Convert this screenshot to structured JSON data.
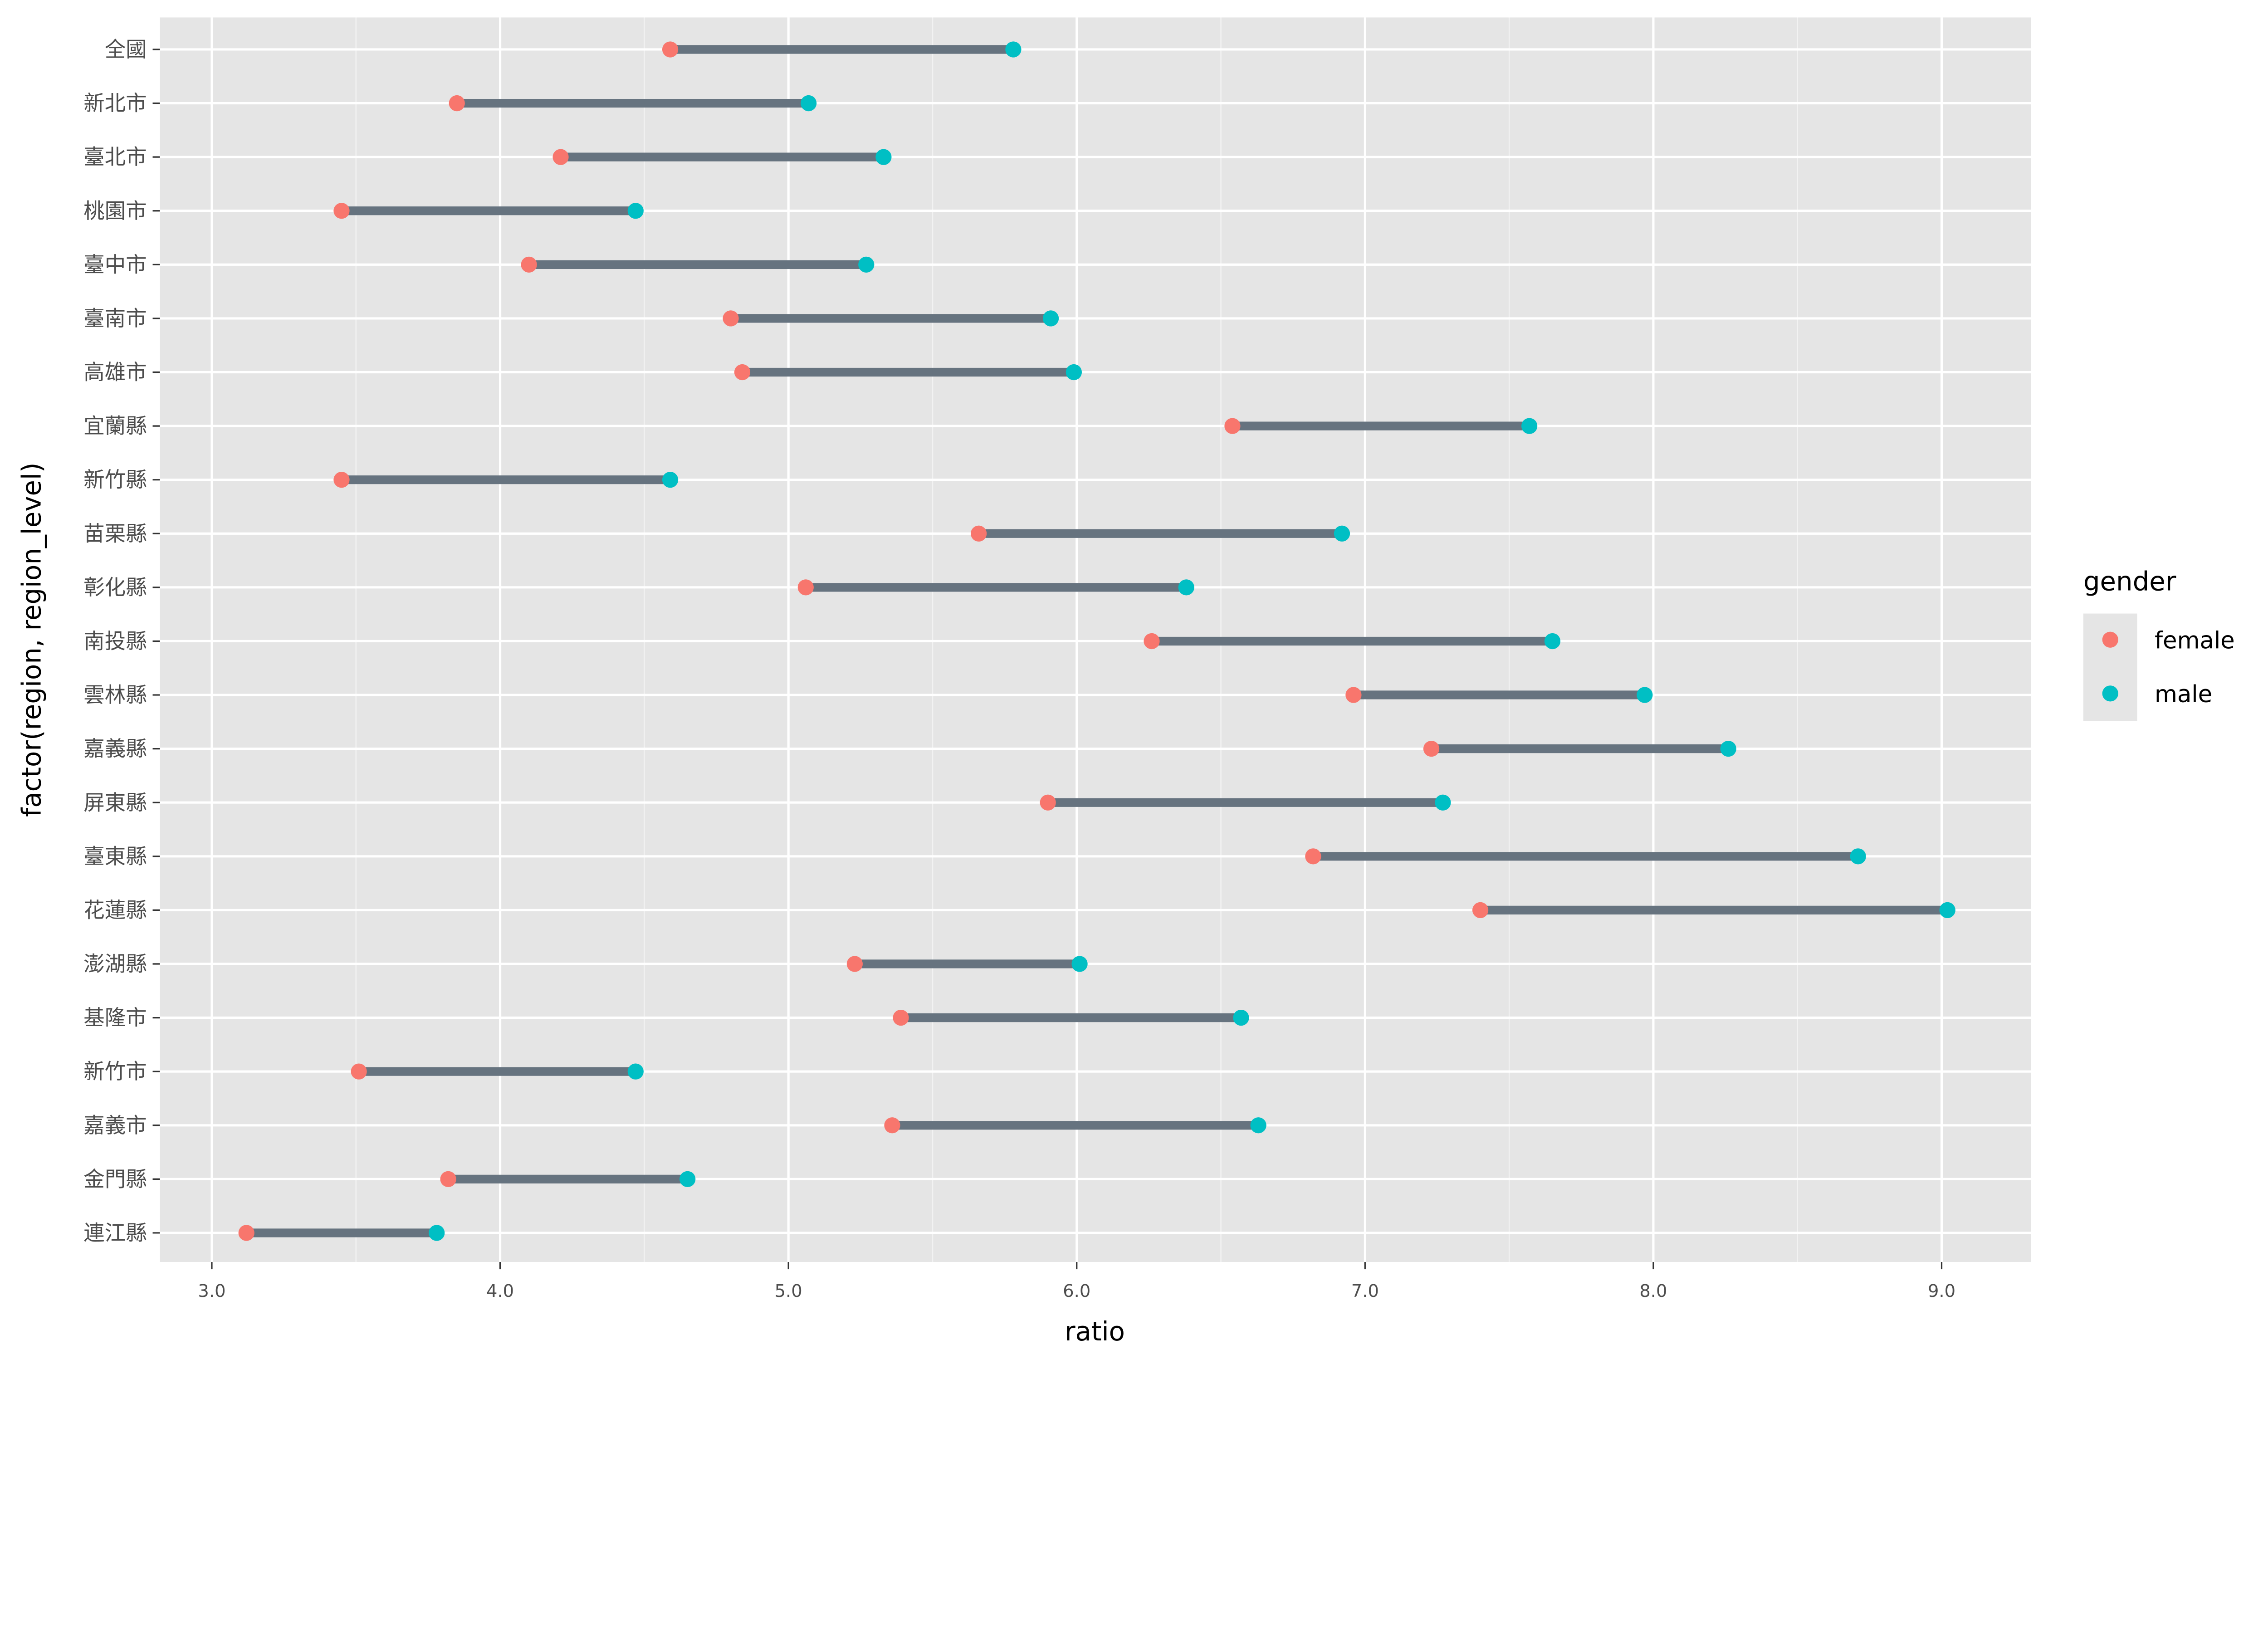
{
  "chart_data": {
    "type": "dumbbell",
    "xlabel": "ratio",
    "ylabel": "factor(region, region_level)",
    "xlim": [
      2.82,
      9.31
    ],
    "xticks": [
      3,
      4,
      5,
      6,
      7,
      8,
      9
    ],
    "xtick_labels": [
      "3.0",
      "4.0",
      "5.0",
      "6.0",
      "7.0",
      "8.0",
      "9.0"
    ],
    "grid": true,
    "legend": {
      "title": "gender",
      "position": "right",
      "entries": [
        "female",
        "male"
      ]
    },
    "colors": {
      "female": "#F8766D",
      "male": "#00BFC4",
      "segment": "#66737F",
      "panel": "#E5E5E5",
      "grid": "#FFFFFF"
    },
    "categories": [
      "全國",
      "新北市",
      "臺北市",
      "桃園市",
      "臺中市",
      "臺南市",
      "高雄市",
      "宜蘭縣",
      "新竹縣",
      "苗栗縣",
      "彰化縣",
      "南投縣",
      "雲林縣",
      "嘉義縣",
      "屏東縣",
      "臺東縣",
      "花蓮縣",
      "澎湖縣",
      "基隆市",
      "新竹市",
      "嘉義市",
      "金門縣",
      "連江縣"
    ],
    "series": [
      {
        "name": "female",
        "values": [
          4.59,
          3.85,
          4.21,
          3.45,
          4.1,
          4.8,
          4.84,
          6.54,
          3.45,
          5.66,
          5.06,
          6.26,
          6.96,
          7.23,
          5.9,
          6.82,
          7.4,
          5.23,
          5.39,
          3.51,
          5.36,
          3.82,
          3.12
        ]
      },
      {
        "name": "male",
        "values": [
          5.78,
          5.07,
          5.33,
          4.47,
          5.27,
          5.91,
          5.99,
          7.57,
          4.59,
          6.92,
          6.38,
          7.65,
          7.97,
          8.26,
          7.27,
          8.71,
          9.02,
          6.01,
          6.57,
          4.47,
          6.63,
          4.65,
          3.78
        ]
      }
    ]
  }
}
